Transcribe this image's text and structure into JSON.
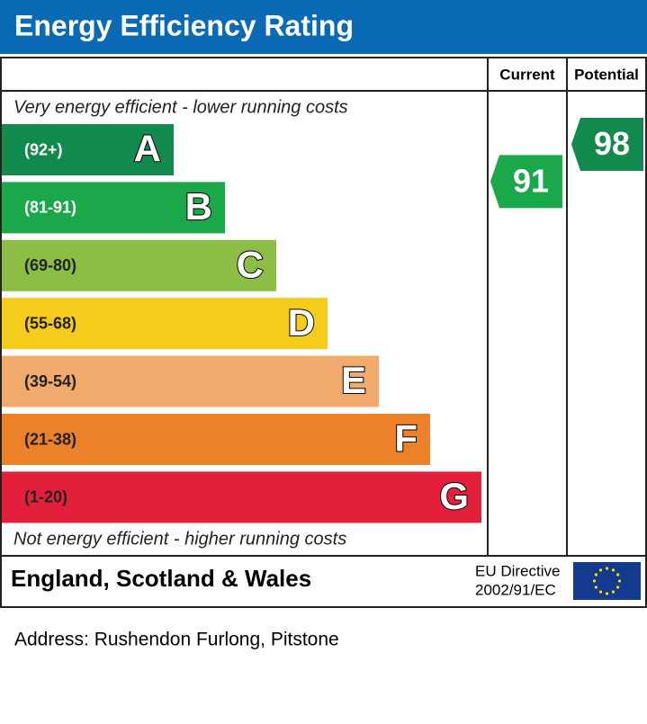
{
  "header": {
    "title": "Energy Efficiency Rating"
  },
  "columns": {
    "current": "Current",
    "potential": "Potential"
  },
  "top_note": "Very energy efficient - lower running costs",
  "bottom_note": "Not energy efficient - higher running costs",
  "bands": [
    {
      "range": "(92+)",
      "letter": "A",
      "color": "#128a4e",
      "label_color": "#ffffff"
    },
    {
      "range": "(81-91)",
      "letter": "B",
      "color": "#1ba84b",
      "label_color": "#ffffff"
    },
    {
      "range": "(69-80)",
      "letter": "C",
      "color": "#8cbd45",
      "label_color": "#222222"
    },
    {
      "range": "(55-68)",
      "letter": "D",
      "color": "#f5cc1b",
      "label_color": "#222222"
    },
    {
      "range": "(39-54)",
      "letter": "E",
      "color": "#f1aa6c",
      "label_color": "#222222"
    },
    {
      "range": "(21-38)",
      "letter": "F",
      "color": "#ec8129",
      "label_color": "#222222"
    },
    {
      "range": "(1-20)",
      "letter": "G",
      "color": "#e41f3c",
      "label_color": "#222222"
    }
  ],
  "ratings": {
    "current": 91,
    "potential": 98
  },
  "footer": {
    "region": "England, Scotland & Wales",
    "directive_line1": "EU Directive",
    "directive_line2": "2002/91/EC"
  },
  "address": "Address: Rushendon Furlong, Pitstone"
}
